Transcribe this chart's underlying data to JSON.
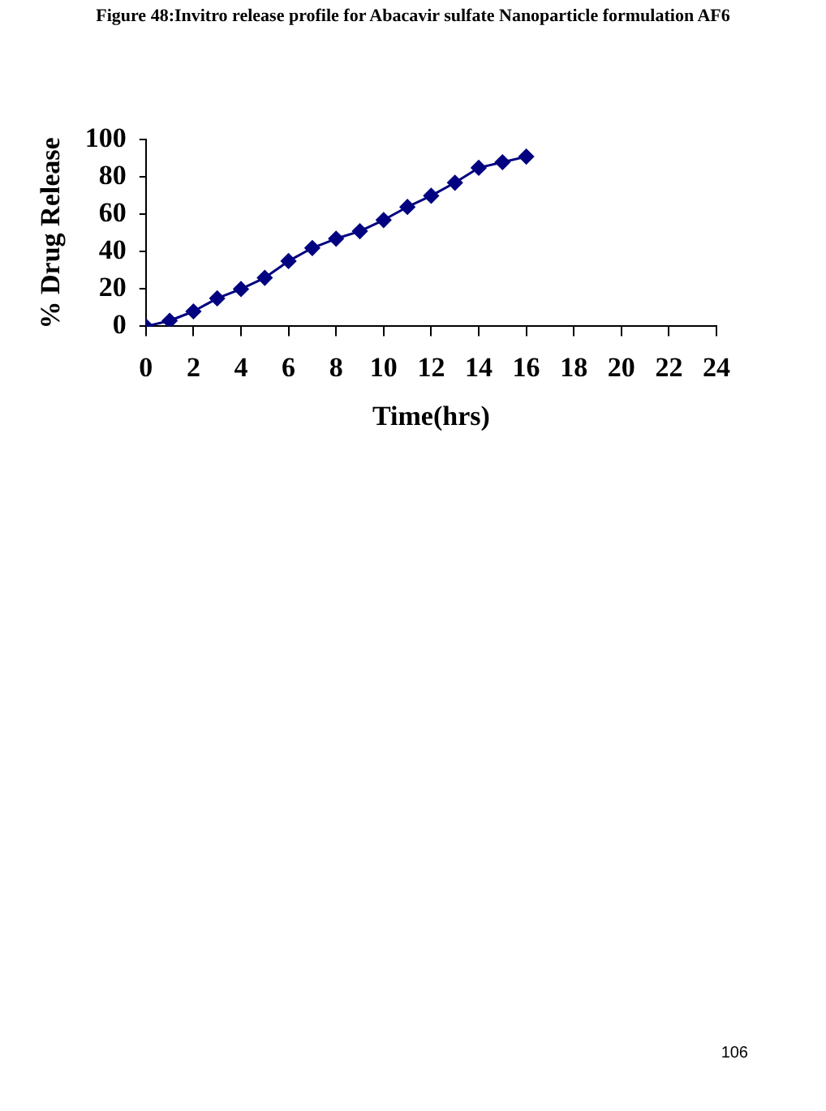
{
  "chart_data": {
    "type": "line",
    "title": "Figure 48:Invitro  release profile for Abacavir sulfate Nanoparticle formulation AF6",
    "xlabel": "Time(hrs)",
    "ylabel": "% Drug Release",
    "x": [
      0,
      1,
      2,
      3,
      4,
      5,
      6,
      7,
      8,
      9,
      10,
      11,
      12,
      13,
      14,
      15,
      16
    ],
    "series": [
      {
        "color": "#000080",
        "values": [
          0,
          3,
          8,
          15,
          20,
          26,
          35,
          42,
          47,
          51,
          57,
          64,
          70,
          77,
          85,
          88,
          91
        ]
      }
    ],
    "xlim": [
      0,
      24
    ],
    "xticks": [
      0,
      2,
      4,
      6,
      8,
      10,
      12,
      14,
      16,
      18,
      20,
      22,
      24
    ],
    "ylim": [
      0,
      100
    ],
    "yticks": [
      0,
      20,
      40,
      60,
      80,
      100
    ],
    "grid": false,
    "legend": false,
    "marker": "diamond",
    "line_style": "solid",
    "annotations": [
      "106"
    ]
  }
}
